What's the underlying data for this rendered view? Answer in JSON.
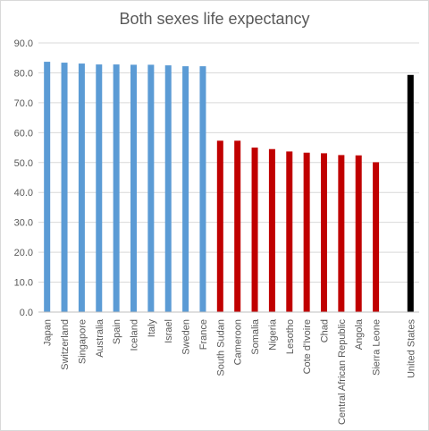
{
  "chart_data": {
    "type": "bar",
    "title": "Both sexes life expectancy",
    "xlabel": "",
    "ylabel": "",
    "ylim": [
      0,
      90
    ],
    "yticks": [
      "0.0",
      "10.0",
      "20.0",
      "30.0",
      "40.0",
      "50.0",
      "60.0",
      "70.0",
      "80.0",
      "90.0"
    ],
    "grid": true,
    "legend": "none",
    "categories": [
      "Japan",
      "Switzerland",
      "Singapore",
      "Australia",
      "Spain",
      "Iceland",
      "Italy",
      "Israel",
      "Sweden",
      "France",
      "South Sudan",
      "Cameroon",
      "Somalia",
      "Nigeria",
      "Lesotho",
      "Cote d'Ivoire",
      "Chad",
      "Central African Republic",
      "Angola",
      "Sierra Leone",
      "",
      "United States"
    ],
    "values": [
      83.7,
      83.4,
      83.1,
      82.8,
      82.8,
      82.7,
      82.7,
      82.5,
      82.2,
      82.2,
      57.3,
      57.3,
      55.0,
      54.5,
      53.7,
      53.3,
      53.1,
      52.5,
      52.4,
      50.1,
      null,
      79.3
    ],
    "colors": [
      "#5b9bd5",
      "#5b9bd5",
      "#5b9bd5",
      "#5b9bd5",
      "#5b9bd5",
      "#5b9bd5",
      "#5b9bd5",
      "#5b9bd5",
      "#5b9bd5",
      "#5b9bd5",
      "#c00000",
      "#c00000",
      "#c00000",
      "#c00000",
      "#c00000",
      "#c00000",
      "#c00000",
      "#c00000",
      "#c00000",
      "#c00000",
      "#c00000",
      "#000000"
    ],
    "gridline_color": "#d9d9d9",
    "axis_color": "#bfbfbf",
    "text_color": "#595959"
  }
}
